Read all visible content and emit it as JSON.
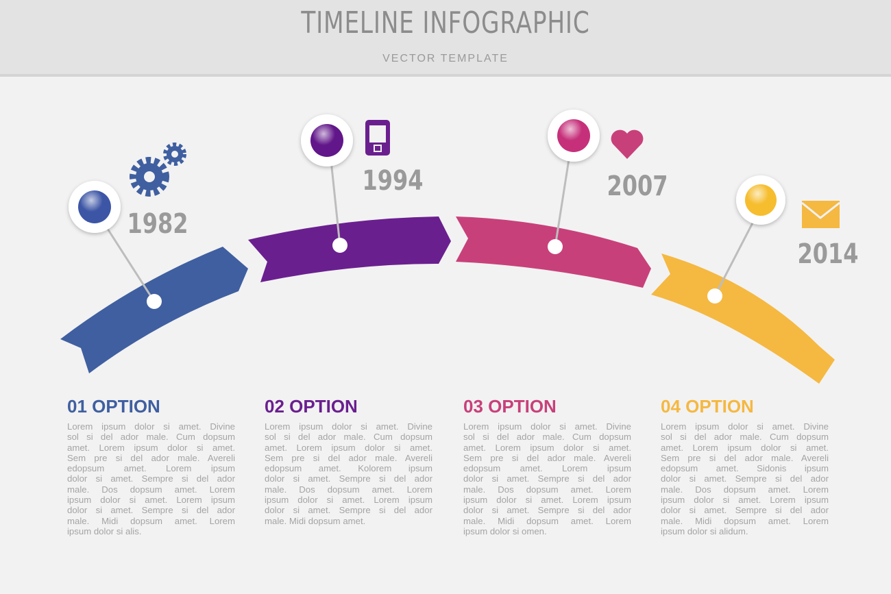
{
  "header": {
    "title": "TIMELINE INFOGRAPHIC",
    "subtitle": "VECTOR TEMPLATE"
  },
  "items": [
    {
      "year": "1982",
      "title": "01 OPTION",
      "lines": [
        "Lorem ipsum dolor si amet. Divine",
        "sol si del ador male. Cum dopsum",
        "amet. Lorem ipsum dolor si amet.",
        "Sem pre si del ador male.  Avereli",
        "edopsum amet. Lorem ipsum",
        "dolor si amet. Sempre si del ador",
        "male. Dos dopsum amet. Lorem",
        "ipsum dolor si amet. Lorem ipsum",
        "dolor si amet. Sempre si del ador",
        "male. Midi dopsum amet. Lorem",
        "ipsum dolor si alis."
      ]
    },
    {
      "year": "1994",
      "title": "02 OPTION",
      "lines": [
        "Lorem ipsum dolor si amet. Divine",
        "sol si del ador male. Cum dopsum",
        "amet. Lorem ipsum dolor si amet.",
        "Sem pre si del ador male.  Avereli",
        "edopsum amet. Kolorem ipsum",
        "dolor si amet. Sempre si del ador",
        "male. Dos dopsum amet. Lorem",
        "ipsum dolor si amet. Lorem ipsum",
        "dolor si amet. Sempre si del ador",
        "male. Midi dopsum amet."
      ]
    },
    {
      "year": "2007",
      "title": "03 OPTION",
      "lines": [
        "Lorem ipsum dolor si amet. Divine",
        "sol si del ador male. Cum dopsum",
        "amet. Lorem ipsum dolor si amet.",
        "Sem pre si del ador male.  Avereli",
        "edopsum amet. Lorem ipsum",
        "dolor si amet. Sempre si del ador",
        "male. Dos dopsum amet. Lorem",
        "ipsum dolor si amet. Lorem ipsum",
        "dolor si amet. Sempre si del ador",
        "male. Midi dopsum amet. Lorem",
        "ipsum dolor si omen."
      ]
    },
    {
      "year": "2014",
      "title": "04 OPTION",
      "lines": [
        "Lorem ipsum dolor si amet. Divine",
        "sol si del ador male. Cum dopsum",
        "amet. Lorem ipsum dolor si amet.",
        "Sem pre si del ador male.  Avereli",
        "edopsum amet. Sidonis ipsum",
        "dolor si amet. Sempre si del ador",
        "male. Dos dopsum amet. Lorem",
        "ipsum dolor si amet. Lorem ipsum",
        "dolor si amet. Sempre si del ador",
        "male. Midi dopsum amet. Lorem",
        "ipsum dolor si alidum."
      ]
    }
  ]
}
